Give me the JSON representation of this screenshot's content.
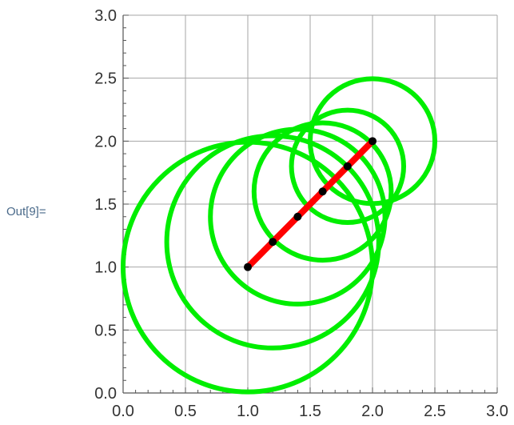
{
  "cell_label": "Out[9]=",
  "chart_data": {
    "type": "scatter",
    "title": "",
    "xlabel": "",
    "ylabel": "",
    "xlim": [
      0,
      3
    ],
    "ylim": [
      0,
      3
    ],
    "x_ticks": [
      "0.0",
      "0.5",
      "1.0",
      "1.5",
      "2.0",
      "2.5",
      "3.0"
    ],
    "y_ticks": [
      "0.0",
      "0.5",
      "1.0",
      "1.5",
      "2.0",
      "2.5",
      "3.0"
    ],
    "grid": true,
    "line_segment": {
      "from": [
        1.0,
        1.0
      ],
      "to": [
        2.0,
        2.0
      ],
      "color": "#ff0000"
    },
    "points": [
      {
        "x": 1.0,
        "y": 1.0
      },
      {
        "x": 1.2,
        "y": 1.2
      },
      {
        "x": 1.4,
        "y": 1.4
      },
      {
        "x": 1.6,
        "y": 1.6
      },
      {
        "x": 1.8,
        "y": 1.8
      },
      {
        "x": 2.0,
        "y": 2.0
      }
    ],
    "circles": [
      {
        "cx": 1.0,
        "cy": 1.0,
        "r": 1.0
      },
      {
        "cx": 1.2,
        "cy": 1.2,
        "r": 0.85
      },
      {
        "cx": 1.4,
        "cy": 1.4,
        "r": 0.7
      },
      {
        "cx": 1.6,
        "cy": 1.6,
        "r": 0.55
      },
      {
        "cx": 1.8,
        "cy": 1.8,
        "r": 0.45
      },
      {
        "cx": 2.0,
        "cy": 2.0,
        "r": 0.5
      }
    ],
    "colors": {
      "circle": "#00ee00",
      "segment": "#ff0000",
      "point": "#000000",
      "grid": "#a6a6a6",
      "axis": "#555555"
    }
  }
}
